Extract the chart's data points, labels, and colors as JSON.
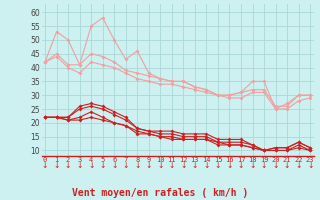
{
  "x": [
    0,
    1,
    2,
    3,
    4,
    5,
    6,
    7,
    8,
    9,
    10,
    11,
    12,
    13,
    14,
    15,
    16,
    17,
    18,
    19,
    20,
    21,
    22,
    23
  ],
  "line1": [
    42,
    53,
    50,
    41,
    55,
    58,
    50,
    43,
    46,
    38,
    36,
    35,
    35,
    33,
    32,
    30,
    30,
    31,
    35,
    35,
    25,
    27,
    30,
    30
  ],
  "line2": [
    42,
    45,
    41,
    41,
    45,
    44,
    42,
    39,
    38,
    37,
    36,
    35,
    35,
    33,
    32,
    30,
    30,
    31,
    32,
    32,
    26,
    26,
    30,
    30
  ],
  "line3": [
    42,
    44,
    40,
    38,
    42,
    41,
    40,
    38,
    36,
    35,
    34,
    34,
    33,
    32,
    31,
    30,
    29,
    29,
    31,
    31,
    25,
    25,
    28,
    29
  ],
  "line4": [
    22,
    22,
    22,
    26,
    27,
    26,
    24,
    22,
    18,
    17,
    17,
    17,
    16,
    16,
    16,
    14,
    14,
    14,
    12,
    10,
    11,
    11,
    13,
    11
  ],
  "line5": [
    22,
    22,
    22,
    25,
    26,
    25,
    23,
    21,
    18,
    17,
    16,
    16,
    15,
    15,
    15,
    13,
    13,
    13,
    12,
    10,
    11,
    11,
    13,
    11
  ],
  "line6": [
    22,
    22,
    21,
    22,
    24,
    22,
    20,
    19,
    17,
    16,
    15,
    15,
    14,
    14,
    14,
    13,
    12,
    12,
    11,
    10,
    10,
    10,
    12,
    10
  ],
  "line7": [
    22,
    22,
    21,
    21,
    22,
    21,
    20,
    19,
    16,
    16,
    15,
    14,
    14,
    14,
    14,
    12,
    12,
    12,
    11,
    10,
    10,
    10,
    11,
    10
  ],
  "color_light": "#f0a0a0",
  "color_dark": "#cc2020",
  "bg_color": "#cdf0f0",
  "grid_color": "#aad8d8",
  "xlabel": "Vent moyen/en rafales ( km/h )",
  "xlabel_color": "#cc2020",
  "xlabel_fontsize": 7,
  "ylabel_ticks": [
    10,
    15,
    20,
    25,
    30,
    35,
    40,
    45,
    50,
    55,
    60
  ],
  "ylim": [
    8,
    63
  ],
  "xlim": [
    -0.3,
    23.3
  ],
  "tick_color": "#cc2020",
  "ytick_color": "#444444"
}
